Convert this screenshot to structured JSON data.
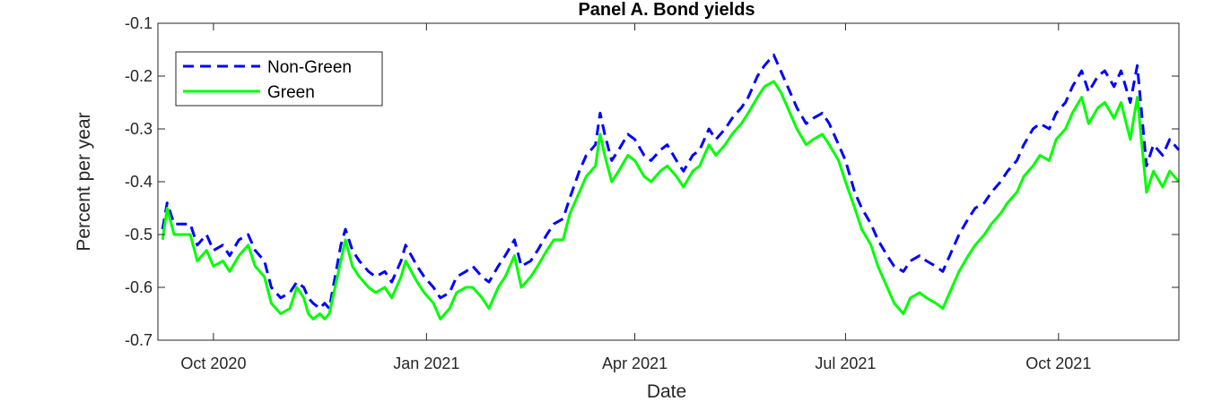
{
  "chart_data": {
    "type": "line",
    "title": "Panel A.  Bond yields",
    "xlabel": "Date",
    "ylabel": "Percent per year",
    "xlim": [
      "2020-09-07",
      "2021-11-22"
    ],
    "ylim": [
      -0.7,
      -0.1
    ],
    "y_ticks": [
      -0.7,
      -0.6,
      -0.5,
      -0.4,
      -0.3,
      -0.2,
      -0.1
    ],
    "x_ticks": [
      {
        "date": "2020-10-01",
        "label": "Oct 2020"
      },
      {
        "date": "2021-01-01",
        "label": "Jan 2021"
      },
      {
        "date": "2021-04-01",
        "label": "Apr 2021"
      },
      {
        "date": "2021-07-01",
        "label": "Jul 2021"
      },
      {
        "date": "2021-10-01",
        "label": "Oct 2021"
      }
    ],
    "grid": false,
    "legend_position": "top-left",
    "series": [
      {
        "name": "Non-Green",
        "color": "#0000ff",
        "style": "dashed",
        "points": [
          [
            "2020-09-09",
            -0.49
          ],
          [
            "2020-09-11",
            -0.44
          ],
          [
            "2020-09-14",
            -0.48
          ],
          [
            "2020-09-18",
            -0.48
          ],
          [
            "2020-09-21",
            -0.48
          ],
          [
            "2020-09-24",
            -0.52
          ],
          [
            "2020-09-28",
            -0.5
          ],
          [
            "2020-10-01",
            -0.53
          ],
          [
            "2020-10-05",
            -0.52
          ],
          [
            "2020-10-08",
            -0.54
          ],
          [
            "2020-10-12",
            -0.51
          ],
          [
            "2020-10-16",
            -0.5
          ],
          [
            "2020-10-19",
            -0.53
          ],
          [
            "2020-10-23",
            -0.55
          ],
          [
            "2020-10-26",
            -0.6
          ],
          [
            "2020-10-30",
            -0.62
          ],
          [
            "2020-11-03",
            -0.61
          ],
          [
            "2020-11-06",
            -0.59
          ],
          [
            "2020-11-09",
            -0.6
          ],
          [
            "2020-11-11",
            -0.62
          ],
          [
            "2020-11-13",
            -0.63
          ],
          [
            "2020-11-16",
            -0.64
          ],
          [
            "2020-11-18",
            -0.63
          ],
          [
            "2020-11-20",
            -0.64
          ],
          [
            "2020-11-25",
            -0.52
          ],
          [
            "2020-11-27",
            -0.49
          ],
          [
            "2020-11-30",
            -0.53
          ],
          [
            "2020-12-03",
            -0.55
          ],
          [
            "2020-12-07",
            -0.57
          ],
          [
            "2020-12-10",
            -0.58
          ],
          [
            "2020-12-14",
            -0.57
          ],
          [
            "2020-12-17",
            -0.59
          ],
          [
            "2020-12-21",
            -0.55
          ],
          [
            "2020-12-23",
            -0.52
          ],
          [
            "2020-12-28",
            -0.56
          ],
          [
            "2020-12-31",
            -0.58
          ],
          [
            "2021-01-04",
            -0.6
          ],
          [
            "2021-01-07",
            -0.62
          ],
          [
            "2021-01-11",
            -0.61
          ],
          [
            "2021-01-14",
            -0.58
          ],
          [
            "2021-01-18",
            -0.57
          ],
          [
            "2021-01-21",
            -0.56
          ],
          [
            "2021-01-25",
            -0.58
          ],
          [
            "2021-01-28",
            -0.59
          ],
          [
            "2021-02-01",
            -0.56
          ],
          [
            "2021-02-04",
            -0.54
          ],
          [
            "2021-02-08",
            -0.51
          ],
          [
            "2021-02-11",
            -0.56
          ],
          [
            "2021-02-15",
            -0.55
          ],
          [
            "2021-02-18",
            -0.53
          ],
          [
            "2021-02-22",
            -0.5
          ],
          [
            "2021-02-25",
            -0.48
          ],
          [
            "2021-03-01",
            -0.47
          ],
          [
            "2021-03-04",
            -0.43
          ],
          [
            "2021-03-08",
            -0.38
          ],
          [
            "2021-03-11",
            -0.35
          ],
          [
            "2021-03-15",
            -0.33
          ],
          [
            "2021-03-17",
            -0.27
          ],
          [
            "2021-03-19",
            -0.31
          ],
          [
            "2021-03-22",
            -0.36
          ],
          [
            "2021-03-25",
            -0.34
          ],
          [
            "2021-03-29",
            -0.31
          ],
          [
            "2021-04-01",
            -0.32
          ],
          [
            "2021-04-05",
            -0.35
          ],
          [
            "2021-04-08",
            -0.36
          ],
          [
            "2021-04-12",
            -0.34
          ],
          [
            "2021-04-15",
            -0.33
          ],
          [
            "2021-04-19",
            -0.36
          ],
          [
            "2021-04-22",
            -0.38
          ],
          [
            "2021-04-26",
            -0.35
          ],
          [
            "2021-04-29",
            -0.34
          ],
          [
            "2021-05-03",
            -0.3
          ],
          [
            "2021-05-06",
            -0.32
          ],
          [
            "2021-05-10",
            -0.3
          ],
          [
            "2021-05-13",
            -0.28
          ],
          [
            "2021-05-17",
            -0.26
          ],
          [
            "2021-05-20",
            -0.24
          ],
          [
            "2021-05-24",
            -0.2
          ],
          [
            "2021-05-27",
            -0.18
          ],
          [
            "2021-05-31",
            -0.16
          ],
          [
            "2021-06-03",
            -0.19
          ],
          [
            "2021-06-07",
            -0.23
          ],
          [
            "2021-06-10",
            -0.26
          ],
          [
            "2021-06-14",
            -0.29
          ],
          [
            "2021-06-17",
            -0.28
          ],
          [
            "2021-06-21",
            -0.27
          ],
          [
            "2021-06-24",
            -0.29
          ],
          [
            "2021-06-28",
            -0.33
          ],
          [
            "2021-07-01",
            -0.36
          ],
          [
            "2021-07-05",
            -0.42
          ],
          [
            "2021-07-08",
            -0.45
          ],
          [
            "2021-07-12",
            -0.48
          ],
          [
            "2021-07-15",
            -0.51
          ],
          [
            "2021-07-19",
            -0.54
          ],
          [
            "2021-07-22",
            -0.56
          ],
          [
            "2021-07-26",
            -0.57
          ],
          [
            "2021-07-29",
            -0.55
          ],
          [
            "2021-08-02",
            -0.54
          ],
          [
            "2021-08-05",
            -0.55
          ],
          [
            "2021-08-09",
            -0.56
          ],
          [
            "2021-08-12",
            -0.57
          ],
          [
            "2021-08-16",
            -0.53
          ],
          [
            "2021-08-19",
            -0.5
          ],
          [
            "2021-08-23",
            -0.47
          ],
          [
            "2021-08-26",
            -0.45
          ],
          [
            "2021-08-30",
            -0.44
          ],
          [
            "2021-09-02",
            -0.42
          ],
          [
            "2021-09-06",
            -0.4
          ],
          [
            "2021-09-09",
            -0.38
          ],
          [
            "2021-09-13",
            -0.36
          ],
          [
            "2021-09-16",
            -0.33
          ],
          [
            "2021-09-20",
            -0.3
          ],
          [
            "2021-09-23",
            -0.29
          ],
          [
            "2021-09-27",
            -0.3
          ],
          [
            "2021-09-30",
            -0.27
          ],
          [
            "2021-10-04",
            -0.25
          ],
          [
            "2021-10-07",
            -0.22
          ],
          [
            "2021-10-11",
            -0.19
          ],
          [
            "2021-10-14",
            -0.23
          ],
          [
            "2021-10-18",
            -0.2
          ],
          [
            "2021-10-21",
            -0.19
          ],
          [
            "2021-10-25",
            -0.22
          ],
          [
            "2021-10-28",
            -0.19
          ],
          [
            "2021-11-01",
            -0.25
          ],
          [
            "2021-11-04",
            -0.18
          ],
          [
            "2021-11-08",
            -0.37
          ],
          [
            "2021-11-11",
            -0.33
          ],
          [
            "2021-11-15",
            -0.35
          ],
          [
            "2021-11-18",
            -0.32
          ],
          [
            "2021-11-22",
            -0.34
          ]
        ]
      },
      {
        "name": "Green",
        "color": "#00ff00",
        "style": "solid",
        "points": [
          [
            "2020-09-09",
            -0.51
          ],
          [
            "2020-09-11",
            -0.45
          ],
          [
            "2020-09-14",
            -0.5
          ],
          [
            "2020-09-18",
            -0.5
          ],
          [
            "2020-09-21",
            -0.5
          ],
          [
            "2020-09-24",
            -0.55
          ],
          [
            "2020-09-28",
            -0.53
          ],
          [
            "2020-10-01",
            -0.56
          ],
          [
            "2020-10-05",
            -0.55
          ],
          [
            "2020-10-08",
            -0.57
          ],
          [
            "2020-10-12",
            -0.54
          ],
          [
            "2020-10-16",
            -0.52
          ],
          [
            "2020-10-19",
            -0.56
          ],
          [
            "2020-10-23",
            -0.58
          ],
          [
            "2020-10-26",
            -0.63
          ],
          [
            "2020-10-30",
            -0.65
          ],
          [
            "2020-11-03",
            -0.64
          ],
          [
            "2020-11-06",
            -0.6
          ],
          [
            "2020-11-09",
            -0.62
          ],
          [
            "2020-11-11",
            -0.65
          ],
          [
            "2020-11-13",
            -0.66
          ],
          [
            "2020-11-16",
            -0.65
          ],
          [
            "2020-11-18",
            -0.66
          ],
          [
            "2020-11-20",
            -0.65
          ],
          [
            "2020-11-25",
            -0.55
          ],
          [
            "2020-11-27",
            -0.51
          ],
          [
            "2020-11-30",
            -0.56
          ],
          [
            "2020-12-03",
            -0.58
          ],
          [
            "2020-12-07",
            -0.6
          ],
          [
            "2020-12-10",
            -0.61
          ],
          [
            "2020-12-14",
            -0.6
          ],
          [
            "2020-12-17",
            -0.62
          ],
          [
            "2020-12-21",
            -0.58
          ],
          [
            "2020-12-23",
            -0.55
          ],
          [
            "2020-12-28",
            -0.59
          ],
          [
            "2020-12-31",
            -0.61
          ],
          [
            "2021-01-04",
            -0.63
          ],
          [
            "2021-01-07",
            -0.66
          ],
          [
            "2021-01-11",
            -0.64
          ],
          [
            "2021-01-14",
            -0.61
          ],
          [
            "2021-01-18",
            -0.6
          ],
          [
            "2021-01-21",
            -0.6
          ],
          [
            "2021-01-25",
            -0.62
          ],
          [
            "2021-01-28",
            -0.64
          ],
          [
            "2021-02-01",
            -0.6
          ],
          [
            "2021-02-04",
            -0.58
          ],
          [
            "2021-02-08",
            -0.54
          ],
          [
            "2021-02-11",
            -0.6
          ],
          [
            "2021-02-15",
            -0.58
          ],
          [
            "2021-02-18",
            -0.56
          ],
          [
            "2021-02-22",
            -0.53
          ],
          [
            "2021-02-25",
            -0.51
          ],
          [
            "2021-03-01",
            -0.51
          ],
          [
            "2021-03-04",
            -0.46
          ],
          [
            "2021-03-08",
            -0.42
          ],
          [
            "2021-03-11",
            -0.39
          ],
          [
            "2021-03-15",
            -0.37
          ],
          [
            "2021-03-17",
            -0.31
          ],
          [
            "2021-03-19",
            -0.35
          ],
          [
            "2021-03-22",
            -0.4
          ],
          [
            "2021-03-25",
            -0.38
          ],
          [
            "2021-03-29",
            -0.35
          ],
          [
            "2021-04-01",
            -0.36
          ],
          [
            "2021-04-05",
            -0.39
          ],
          [
            "2021-04-08",
            -0.4
          ],
          [
            "2021-04-12",
            -0.38
          ],
          [
            "2021-04-15",
            -0.37
          ],
          [
            "2021-04-19",
            -0.39
          ],
          [
            "2021-04-22",
            -0.41
          ],
          [
            "2021-04-26",
            -0.38
          ],
          [
            "2021-04-29",
            -0.37
          ],
          [
            "2021-05-03",
            -0.33
          ],
          [
            "2021-05-06",
            -0.35
          ],
          [
            "2021-05-10",
            -0.33
          ],
          [
            "2021-05-13",
            -0.31
          ],
          [
            "2021-05-17",
            -0.29
          ],
          [
            "2021-05-20",
            -0.27
          ],
          [
            "2021-05-24",
            -0.24
          ],
          [
            "2021-05-27",
            -0.22
          ],
          [
            "2021-05-31",
            -0.21
          ],
          [
            "2021-06-03",
            -0.23
          ],
          [
            "2021-06-07",
            -0.27
          ],
          [
            "2021-06-10",
            -0.3
          ],
          [
            "2021-06-14",
            -0.33
          ],
          [
            "2021-06-17",
            -0.32
          ],
          [
            "2021-06-21",
            -0.31
          ],
          [
            "2021-06-24",
            -0.33
          ],
          [
            "2021-06-28",
            -0.36
          ],
          [
            "2021-07-01",
            -0.4
          ],
          [
            "2021-07-05",
            -0.45
          ],
          [
            "2021-07-08",
            -0.49
          ],
          [
            "2021-07-12",
            -0.52
          ],
          [
            "2021-07-15",
            -0.56
          ],
          [
            "2021-07-19",
            -0.6
          ],
          [
            "2021-07-22",
            -0.63
          ],
          [
            "2021-07-26",
            -0.65
          ],
          [
            "2021-07-29",
            -0.62
          ],
          [
            "2021-08-02",
            -0.61
          ],
          [
            "2021-08-05",
            -0.62
          ],
          [
            "2021-08-09",
            -0.63
          ],
          [
            "2021-08-12",
            -0.64
          ],
          [
            "2021-08-16",
            -0.6
          ],
          [
            "2021-08-19",
            -0.57
          ],
          [
            "2021-08-23",
            -0.54
          ],
          [
            "2021-08-26",
            -0.52
          ],
          [
            "2021-08-30",
            -0.5
          ],
          [
            "2021-09-02",
            -0.48
          ],
          [
            "2021-09-06",
            -0.46
          ],
          [
            "2021-09-09",
            -0.44
          ],
          [
            "2021-09-13",
            -0.42
          ],
          [
            "2021-09-16",
            -0.39
          ],
          [
            "2021-09-20",
            -0.37
          ],
          [
            "2021-09-23",
            -0.35
          ],
          [
            "2021-09-27",
            -0.36
          ],
          [
            "2021-09-30",
            -0.32
          ],
          [
            "2021-10-04",
            -0.3
          ],
          [
            "2021-10-07",
            -0.27
          ],
          [
            "2021-10-11",
            -0.24
          ],
          [
            "2021-10-14",
            -0.29
          ],
          [
            "2021-10-18",
            -0.26
          ],
          [
            "2021-10-21",
            -0.25
          ],
          [
            "2021-10-25",
            -0.28
          ],
          [
            "2021-10-28",
            -0.25
          ],
          [
            "2021-11-01",
            -0.32
          ],
          [
            "2021-11-04",
            -0.24
          ],
          [
            "2021-11-08",
            -0.42
          ],
          [
            "2021-11-11",
            -0.38
          ],
          [
            "2021-11-15",
            -0.41
          ],
          [
            "2021-11-18",
            -0.38
          ],
          [
            "2021-11-22",
            -0.4
          ]
        ]
      }
    ]
  }
}
